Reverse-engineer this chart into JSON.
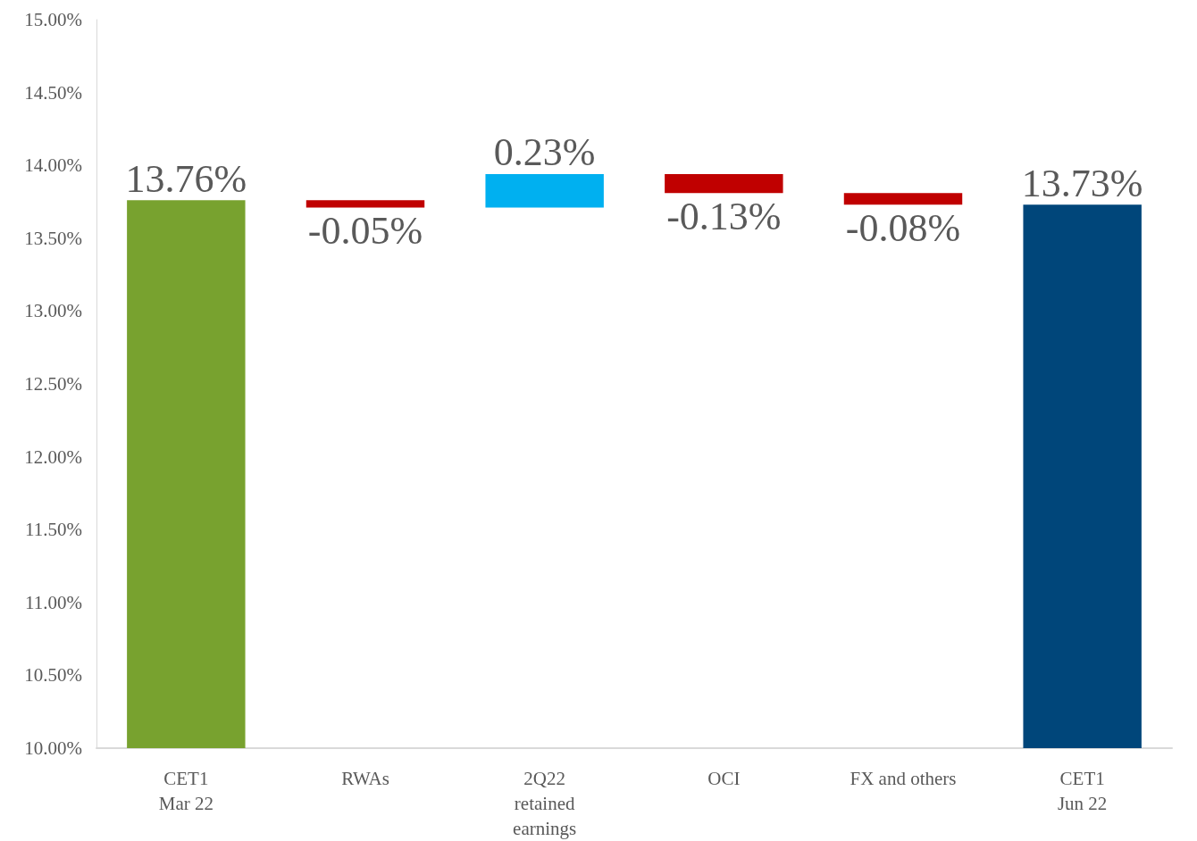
{
  "chart_data": {
    "type": "bar",
    "categories": [
      "CET1\nMar 22",
      "RWAs",
      "2Q22\nretained\nearnings",
      "OCI",
      "FX and others",
      "CET1\nJun 22"
    ],
    "base": [
      10,
      13.76,
      13.71,
      13.94,
      13.81,
      10
    ],
    "values": [
      3.76,
      -0.05,
      0.23,
      -0.13,
      -0.08,
      3.73
    ],
    "colors": [
      "#78a22f",
      "#c00000",
      "#00b0f0",
      "#c00000",
      "#c00000",
      "#00467a"
    ],
    "value_labels": [
      "13.76%",
      "-0.05%",
      "0.23%",
      "-0.13%",
      "-0.08%",
      "13.73%"
    ],
    "ylim": [
      10,
      15
    ],
    "yticks": [
      {
        "value": 10,
        "label": "10.00%"
      },
      {
        "value": 10.5,
        "label": "10.50%"
      },
      {
        "value": 11,
        "label": "11.00%"
      },
      {
        "value": 11.5,
        "label": "11.50%"
      },
      {
        "value": 12,
        "label": "12.00%"
      },
      {
        "value": 12.5,
        "label": "12.50%"
      },
      {
        "value": 13,
        "label": "13.00%"
      },
      {
        "value": 13.5,
        "label": "13.50%"
      },
      {
        "value": 14,
        "label": "14.00%"
      },
      {
        "value": 14.5,
        "label": "14.50%"
      },
      {
        "value": 15,
        "label": "15.00%"
      }
    ],
    "grid": false
  }
}
